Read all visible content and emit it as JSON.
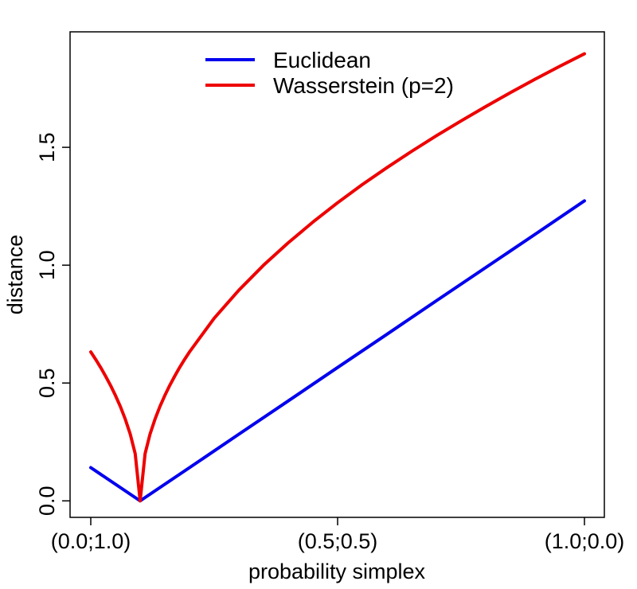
{
  "chart_data": {
    "type": "line",
    "title": "",
    "xlabel": "probability simplex",
    "ylabel": "distance",
    "xlim": [
      0,
      1
    ],
    "ylim": [
      -0.07,
      1.99
    ],
    "x_ticks": [
      {
        "value": 0.0,
        "label": "(0.0;1.0)"
      },
      {
        "value": 0.5,
        "label": "(0.5;0.5)"
      },
      {
        "value": 1.0,
        "label": "(1.0;0.0)"
      }
    ],
    "y_ticks": [
      {
        "value": 0.0,
        "label": "0.0"
      },
      {
        "value": 0.5,
        "label": "0.5"
      },
      {
        "value": 1.0,
        "label": "1.0"
      },
      {
        "value": 1.5,
        "label": "1.5"
      }
    ],
    "legend_position": "top-center",
    "series": [
      {
        "name": "Euclidean",
        "color": "#0000EE",
        "x": [
          0.0,
          0.1,
          0.2,
          0.3,
          0.4,
          0.5,
          0.6,
          0.7,
          0.8,
          0.9,
          1.0
        ],
        "y": [
          0.141,
          0.0,
          0.141,
          0.283,
          0.424,
          0.566,
          0.707,
          0.849,
          0.99,
          1.131,
          1.273
        ]
      },
      {
        "name": "Wasserstein (p=2)",
        "color": "#EE0000",
        "x": [
          0.0,
          0.01,
          0.02,
          0.03,
          0.04,
          0.05,
          0.06,
          0.07,
          0.08,
          0.09,
          0.1,
          0.11,
          0.12,
          0.13,
          0.14,
          0.15,
          0.16,
          0.17,
          0.18,
          0.19,
          0.2,
          0.25,
          0.3,
          0.35,
          0.4,
          0.45,
          0.5,
          0.55,
          0.6,
          0.65,
          0.7,
          0.75,
          0.8,
          0.85,
          0.9,
          0.95,
          1.0
        ],
        "y": [
          0.632,
          0.6,
          0.566,
          0.529,
          0.49,
          0.447,
          0.4,
          0.346,
          0.283,
          0.2,
          0.0,
          0.2,
          0.283,
          0.346,
          0.4,
          0.447,
          0.49,
          0.529,
          0.566,
          0.6,
          0.632,
          0.775,
          0.894,
          1.0,
          1.095,
          1.183,
          1.265,
          1.342,
          1.414,
          1.483,
          1.549,
          1.612,
          1.673,
          1.732,
          1.789,
          1.844,
          1.897
        ]
      }
    ]
  }
}
